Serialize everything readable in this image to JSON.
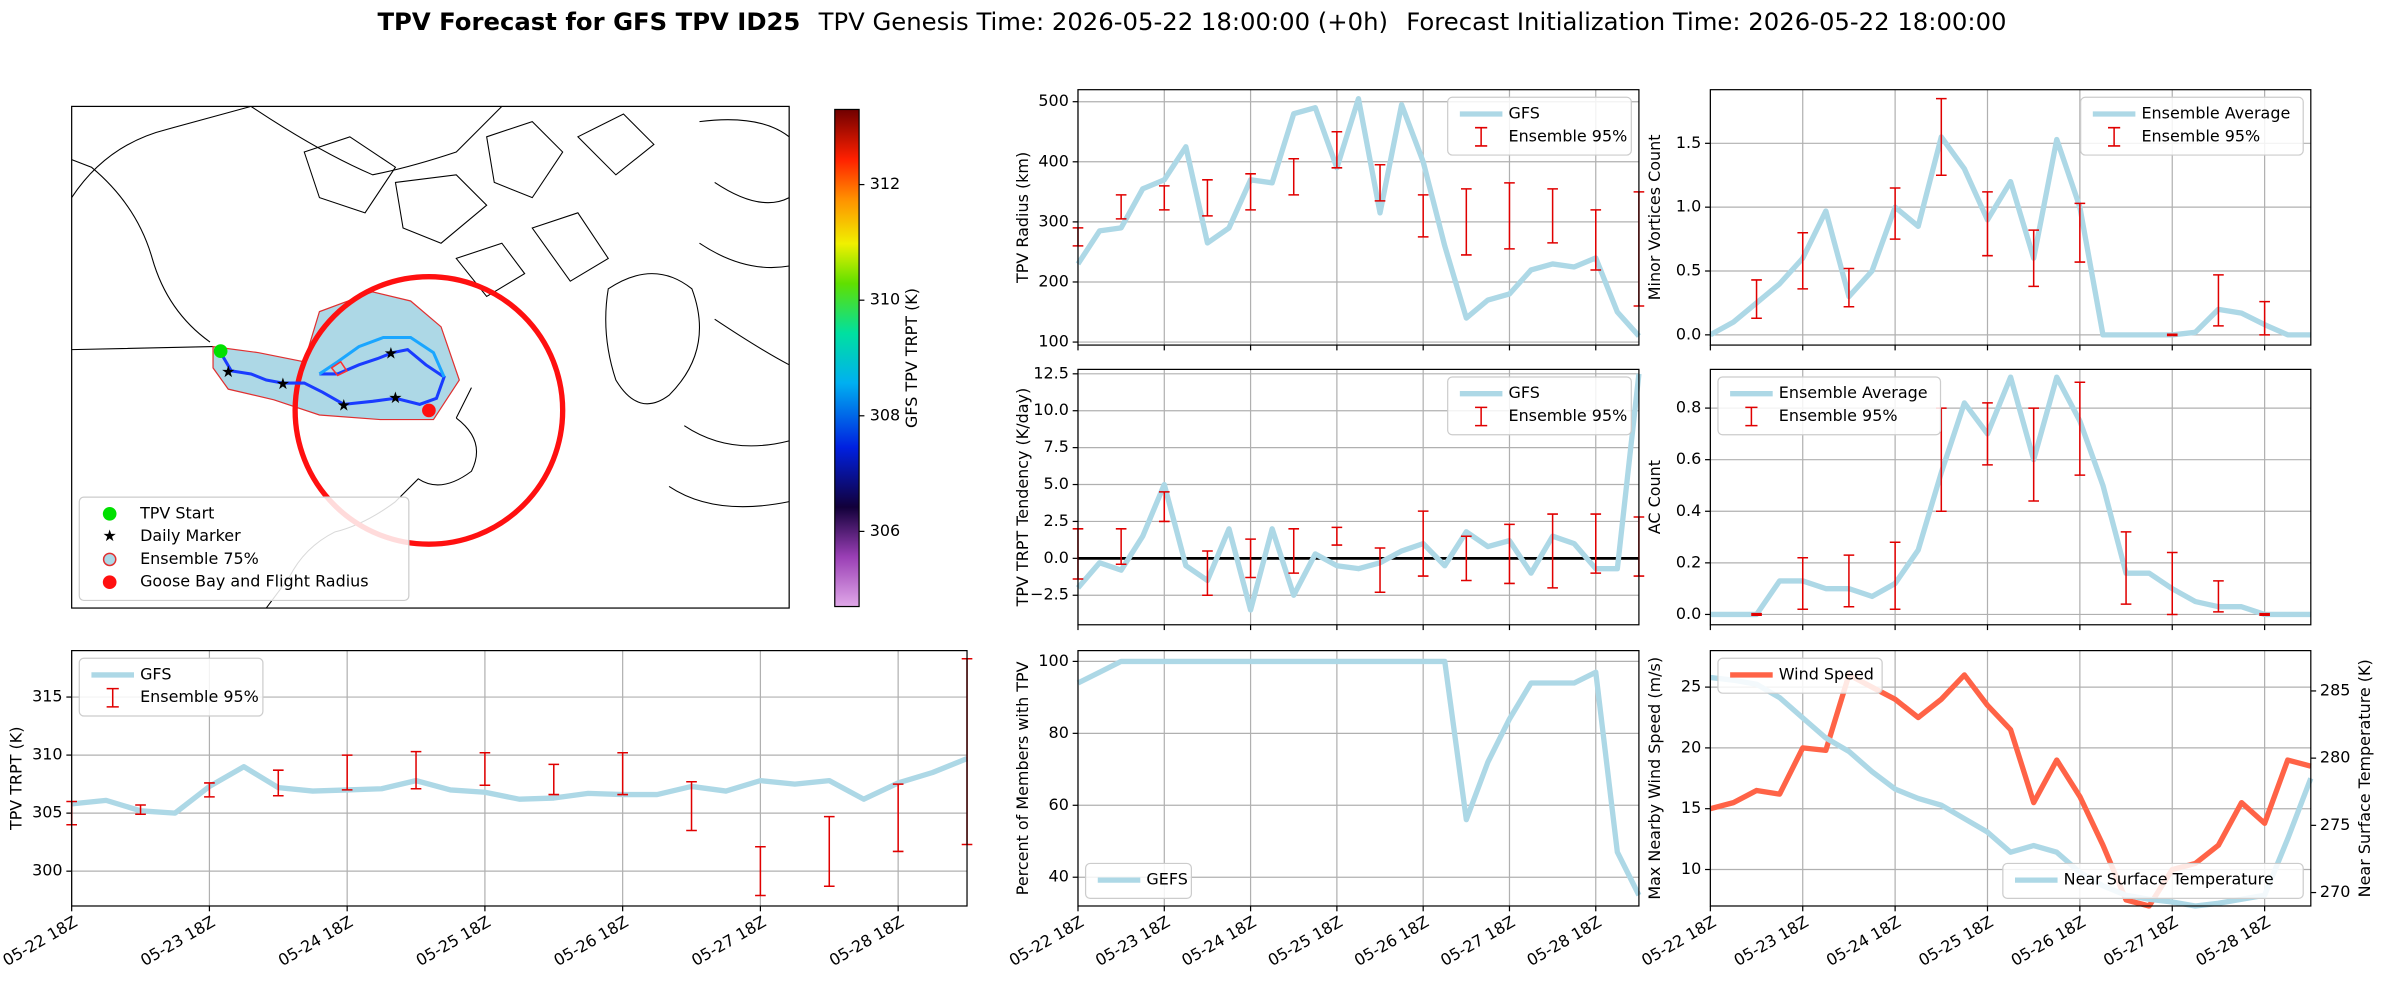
{
  "title": {
    "main": "TPV Forecast for GFS TPV ID25",
    "genesis": "TPV Genesis Time: 2026-05-22 18:00:00 (+0h)",
    "init": "Forecast Initialization Time: 2026-05-22 18:00:00"
  },
  "chart_data": [
    {
      "type": "map",
      "legend": "lower left",
      "legend_entries": [
        "TPV Start",
        "Daily Marker",
        "Ensemble 75%",
        "Goose Bay and Flight Radius"
      ],
      "colorbar": {
        "label": "GFS TPV TRPT (K)",
        "ylim": [
          304.7,
          313.3
        ],
        "yticks": [
          306,
          308,
          310,
          312
        ]
      }
    },
    {
      "type": "line",
      "ylabel": "TPV Radius (km)",
      "legend": "upper right",
      "grid": true,
      "ylim": [
        95,
        520
      ],
      "yticks": [
        100,
        200,
        300,
        400,
        500
      ],
      "series": [
        {
          "name": "GFS",
          "color": "#add8e6",
          "values": [
            230,
            285,
            290,
            355,
            370,
            425,
            265,
            290,
            370,
            365,
            480,
            490,
            390,
            505,
            315,
            495,
            400,
            260,
            140,
            170,
            180,
            220,
            230,
            225,
            240,
            150,
            110
          ]
        },
        {
          "name": "Ensemble 95%",
          "type": "errorbar",
          "color": "#e00000",
          "values": [
            275,
            null,
            325,
            null,
            340,
            null,
            340,
            null,
            350,
            null,
            375,
            null,
            420,
            null,
            365,
            null,
            310,
            null,
            300,
            null,
            310,
            null,
            310,
            null,
            270,
            null,
            255
          ],
          "errors": [
            15,
            null,
            20,
            null,
            20,
            null,
            30,
            null,
            30,
            null,
            30,
            null,
            30,
            null,
            30,
            null,
            35,
            null,
            55,
            null,
            55,
            null,
            45,
            null,
            50,
            null,
            95
          ]
        }
      ]
    },
    {
      "type": "line",
      "ylabel": "TPV TRPT Tendency (K/day)",
      "legend": "upper right",
      "grid": true,
      "axhline": 0,
      "ylim": [
        -4.5,
        12.8
      ],
      "yticks": [
        {
          "value": -2.5,
          "label": "−2.5"
        },
        {
          "value": 0,
          "label": "0.0"
        },
        2.5,
        {
          "value": 5,
          "label": "5.0"
        },
        7.5,
        {
          "value": 10,
          "label": "10.0"
        },
        12.5
      ],
      "series": [
        {
          "name": "GFS",
          "color": "#add8e6",
          "values": [
            -2,
            -0.3,
            -0.8,
            1.5,
            5,
            -0.5,
            -1.5,
            2,
            -3.5,
            2,
            -2.5,
            0.3,
            -0.5,
            -0.7,
            -0.3,
            0.5,
            1,
            -0.5,
            1.8,
            0.8,
            1.2,
            -1,
            1.5,
            1,
            -0.7,
            -0.7,
            12.5
          ]
        },
        {
          "name": "Ensemble 95%",
          "type": "errorbar",
          "color": "#e00000",
          "values": [
            0.3,
            null,
            0.8,
            null,
            3.5,
            null,
            -1,
            null,
            0,
            null,
            0.5,
            null,
            1.5,
            null,
            -0.8,
            null,
            1,
            null,
            0,
            null,
            0.3,
            null,
            0.5,
            null,
            1,
            null,
            0.8
          ],
          "errors": [
            1.7,
            null,
            1.2,
            null,
            1,
            null,
            1.5,
            null,
            1.3,
            null,
            1.5,
            null,
            0.6,
            null,
            1.5,
            null,
            2.2,
            null,
            1.5,
            null,
            2,
            null,
            2.5,
            null,
            2,
            null,
            2
          ]
        }
      ]
    },
    {
      "type": "line",
      "ylabel": "Percent of Members with TPV",
      "legend": "lower left",
      "grid": true,
      "ylim": [
        32,
        103
      ],
      "yticks": [
        40,
        60,
        80,
        100
      ],
      "categories": [
        "05-22 18Z",
        null,
        null,
        null,
        "05-23 18Z",
        null,
        null,
        null,
        "05-24 18Z",
        null,
        null,
        null,
        "05-25 18Z",
        null,
        null,
        null,
        "05-26 18Z",
        null,
        null,
        null,
        "05-27 18Z",
        null,
        null,
        null,
        "05-28 18Z",
        null,
        null
      ],
      "series": [
        {
          "name": "GEFS",
          "color": "#add8e6",
          "values": [
            94,
            97,
            100,
            100,
            100,
            100,
            100,
            100,
            100,
            100,
            100,
            100,
            100,
            100,
            100,
            100,
            100,
            100,
            56,
            72,
            84,
            94,
            94,
            94,
            97,
            47,
            35
          ]
        }
      ]
    },
    {
      "type": "line",
      "ylabel": "TPV TRPT (K)",
      "legend": "upper left",
      "grid": true,
      "ylim": [
        297,
        319
      ],
      "yticks": [
        300,
        305,
        310,
        315
      ],
      "categories": [
        "05-22 18Z",
        null,
        null,
        null,
        "05-23 18Z",
        null,
        null,
        null,
        "05-24 18Z",
        null,
        null,
        null,
        "05-25 18Z",
        null,
        null,
        null,
        "05-26 18Z",
        null,
        null,
        null,
        "05-27 18Z",
        null,
        null,
        null,
        "05-28 18Z",
        null,
        null
      ],
      "series": [
        {
          "name": "GFS",
          "color": "#add8e6",
          "values": [
            305.8,
            306.1,
            305.2,
            305,
            307.3,
            309,
            307.2,
            306.9,
            307,
            307.1,
            307.8,
            307,
            306.8,
            306.2,
            306.3,
            306.7,
            306.6,
            306.6,
            307.3,
            306.9,
            307.8,
            307.5,
            307.8,
            306.2,
            307.6,
            308.5,
            309.7
          ]
        },
        {
          "name": "Ensemble 95%",
          "type": "errorbar",
          "color": "#e00000",
          "values": [
            305,
            null,
            305.3,
            null,
            307,
            null,
            307.6,
            null,
            308.5,
            null,
            308.7,
            null,
            308.8,
            null,
            307.9,
            null,
            308.4,
            null,
            305.6,
            null,
            300,
            null,
            301.7,
            null,
            304.6,
            null,
            310.3
          ],
          "errors": [
            1,
            null,
            0.4,
            null,
            0.6,
            null,
            1.1,
            null,
            1.5,
            null,
            1.6,
            null,
            1.4,
            null,
            1.3,
            null,
            1.8,
            null,
            2.1,
            null,
            2.1,
            null,
            3,
            null,
            2.9,
            null,
            8
          ]
        }
      ]
    },
    {
      "type": "line",
      "ylabel": "Minor Vortices Count",
      "legend": "upper right",
      "grid": true,
      "ylim": [
        -0.08,
        1.92
      ],
      "yticks": [
        {
          "value": 0,
          "label": "0.0"
        },
        0.5,
        {
          "value": 1,
          "label": "1.0"
        },
        1.5
      ],
      "series": [
        {
          "name": "Ensemble Average",
          "color": "#add8e6",
          "values": [
            0,
            0.1,
            0.25,
            0.4,
            0.6,
            0.97,
            0.3,
            0.5,
            1,
            0.85,
            1.55,
            1.3,
            0.9,
            1.2,
            0.6,
            1.53,
            1,
            0,
            0,
            0,
            0,
            0.02,
            0.2,
            0.17,
            0.08,
            0,
            0
          ]
        },
        {
          "name": "Ensemble 95%",
          "type": "errorbar",
          "color": "#e00000",
          "values": [
            null,
            null,
            0.28,
            null,
            0.58,
            null,
            0.37,
            null,
            0.95,
            null,
            1.55,
            null,
            0.87,
            null,
            0.6,
            null,
            0.8,
            null,
            null,
            null,
            0,
            null,
            0.27,
            null,
            0.13,
            null,
            null
          ],
          "errors": [
            null,
            null,
            0.15,
            null,
            0.22,
            null,
            0.15,
            null,
            0.2,
            null,
            0.3,
            null,
            0.25,
            null,
            0.22,
            null,
            0.23,
            null,
            null,
            null,
            0.005,
            null,
            0.2,
            null,
            0.13,
            null,
            null
          ]
        }
      ]
    },
    {
      "type": "line",
      "ylabel": "AC Count",
      "legend": "upper left",
      "grid": true,
      "ylim": [
        -0.04,
        0.95
      ],
      "yticks": [
        {
          "value": 0,
          "label": "0.0"
        },
        0.2,
        0.4,
        0.6,
        0.8
      ],
      "series": [
        {
          "name": "Ensemble Average",
          "color": "#add8e6",
          "values": [
            0,
            0,
            0,
            0.13,
            0.13,
            0.1,
            0.1,
            0.07,
            0.12,
            0.25,
            0.55,
            0.82,
            0.7,
            0.92,
            0.6,
            0.92,
            0.75,
            0.5,
            0.16,
            0.16,
            0.1,
            0.05,
            0.03,
            0.03,
            0,
            0,
            0
          ]
        },
        {
          "name": "Ensemble 95%",
          "type": "errorbar",
          "color": "#e00000",
          "values": [
            null,
            null,
            0,
            null,
            0.12,
            null,
            0.13,
            null,
            0.15,
            null,
            0.6,
            null,
            0.7,
            null,
            0.62,
            null,
            0.72,
            null,
            0.18,
            null,
            0.12,
            null,
            0.07,
            null,
            0,
            null,
            null
          ],
          "errors": [
            null,
            null,
            0.003,
            null,
            0.1,
            null,
            0.1,
            null,
            0.13,
            null,
            0.2,
            null,
            0.12,
            null,
            0.18,
            null,
            0.18,
            null,
            0.14,
            null,
            0.12,
            null,
            0.06,
            null,
            0.003,
            null,
            null
          ]
        }
      ]
    },
    {
      "type": "line",
      "ylabel": "Max Nearby Wind Speed (m/s)",
      "y2label": "Near Surface Temperature (K)",
      "ylabel_color": "#ff6347",
      "y2label_color": "#4169e1",
      "grid": true,
      "ylim": [
        7,
        28
      ],
      "yticks": [
        10,
        15,
        20,
        25
      ],
      "y2lim": [
        269,
        288
      ],
      "y2ticks": [
        270,
        275,
        280,
        285
      ],
      "categories": [
        "05-22 18Z",
        null,
        null,
        null,
        "05-23 18Z",
        null,
        null,
        null,
        "05-24 18Z",
        null,
        null,
        null,
        "05-25 18Z",
        null,
        null,
        null,
        "05-26 18Z",
        null,
        null,
        null,
        "05-27 18Z",
        null,
        null,
        null,
        "05-28 18Z",
        null,
        null
      ],
      "series": [
        {
          "name": "Wind Speed",
          "color": "#ff6347",
          "legend": "upper left",
          "values": [
            15,
            15.5,
            16.5,
            16.2,
            20,
            19.8,
            26,
            25,
            24,
            22.5,
            24,
            26,
            23.5,
            21.5,
            15.5,
            19,
            16,
            12,
            7.5,
            7,
            10,
            10.5,
            12,
            15.5,
            13.8,
            19,
            18.5
          ]
        },
        {
          "name": "Near Surface Temperature",
          "color": "#add8e6",
          "axis": "y2",
          "legend": "lower right",
          "values": [
            286,
            285.8,
            285.5,
            284.5,
            283,
            281.5,
            280.5,
            279,
            277.7,
            277,
            276.5,
            275.5,
            274.5,
            273,
            273.5,
            273,
            271.5,
            270.5,
            269.8,
            269.5,
            269.3,
            269,
            269.2,
            269.5,
            269.8,
            274,
            278.5
          ]
        }
      ]
    }
  ]
}
